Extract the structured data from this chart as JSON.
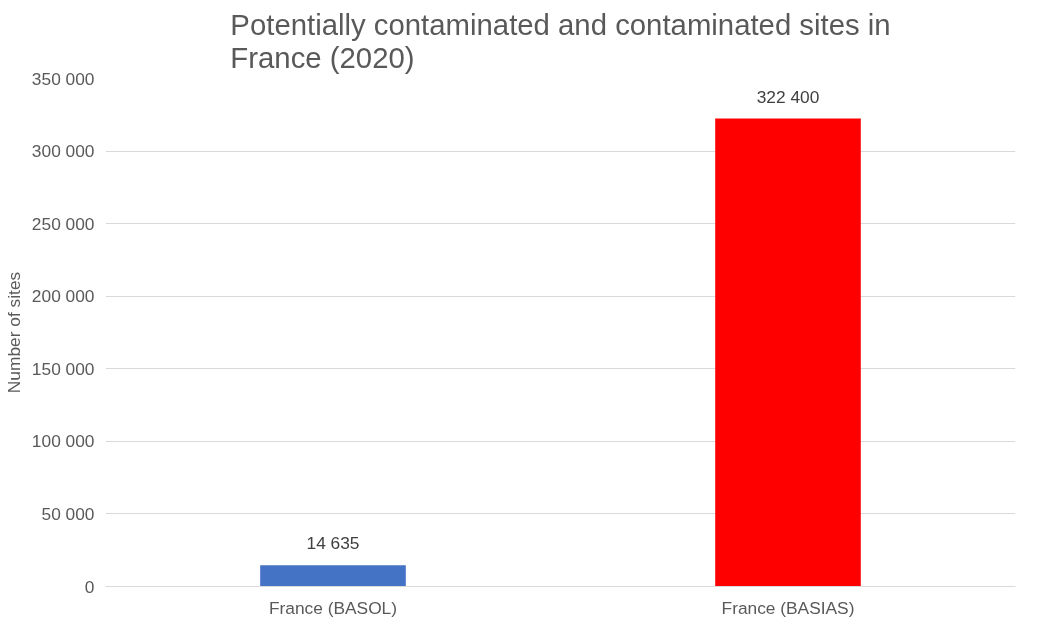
{
  "chart_data": {
    "type": "bar",
    "title": "Potentially contaminated and contaminated sites in France (2020)",
    "ylabel": "Number of sites",
    "categories": [
      "France (BASOL)",
      "France (BASIAS)"
    ],
    "values": [
      14635,
      322400
    ],
    "colors": [
      "#4472c4",
      "#ff0000"
    ],
    "value_labels": [
      "14 635",
      "322 400"
    ],
    "ylim": [
      0,
      350000
    ],
    "yticks": [
      {
        "value": 0,
        "label": "0"
      },
      {
        "value": 50000,
        "label": "50 000"
      },
      {
        "value": 100000,
        "label": "100 000"
      },
      {
        "value": 150000,
        "label": "150 000"
      },
      {
        "value": 200000,
        "label": "200 000"
      },
      {
        "value": 250000,
        "label": "250 000"
      },
      {
        "value": 300000,
        "label": "300 000"
      },
      {
        "value": 350000,
        "label": "350 000"
      }
    ],
    "grid": "y"
  }
}
